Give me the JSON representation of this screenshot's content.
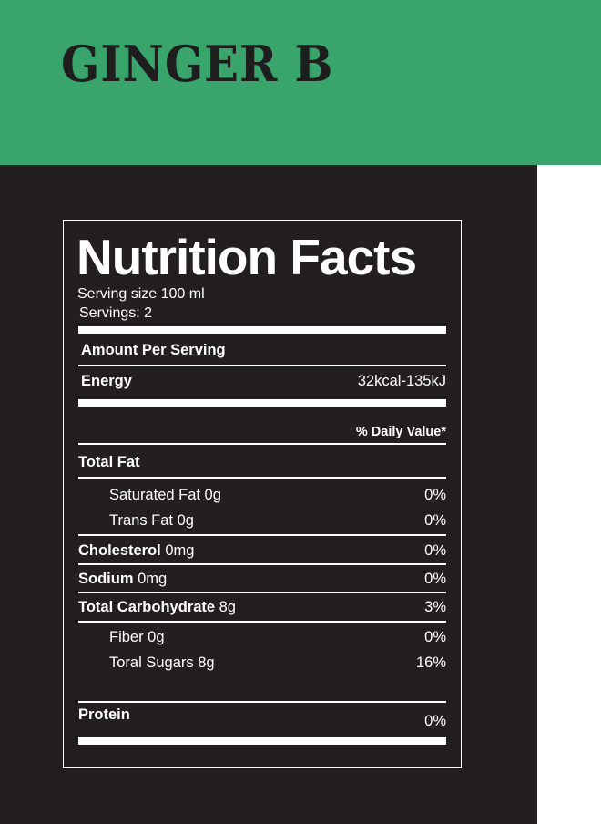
{
  "brand": {
    "title": "GINGER B"
  },
  "label": {
    "title": "Nutrition Facts",
    "serving_size": "Serving size 100 ml",
    "servings": "Servings: 2",
    "amount_per_serving": "Amount Per Serving",
    "energy": {
      "label": "Energy",
      "value": "32kcal-135kJ"
    },
    "daily_value_header": "% Daily Value*",
    "total_fat": {
      "label": "Total Fat"
    },
    "saturated_fat": {
      "label": "Saturated Fat 0g",
      "dv": "0%"
    },
    "trans_fat": {
      "label": "Trans Fat 0g",
      "dv": "0%"
    },
    "cholesterol": {
      "label": "Cholesterol",
      "amount": " 0mg",
      "dv": "0%"
    },
    "sodium": {
      "label": "Sodium",
      "amount": " 0mg",
      "dv": "0%"
    },
    "total_carbohydrate": {
      "label": "Total Carbohydrate",
      "amount": " 8g",
      "dv": "3%"
    },
    "fiber": {
      "label": "Fiber 0g",
      "dv": "0%"
    },
    "total_sugars": {
      "label": "Toral Sugars 8g",
      "dv": "16%"
    },
    "protein": {
      "label": "Protein",
      "dv": "0%"
    }
  },
  "colors": {
    "banner": "#39a46b",
    "panel": "#231f20",
    "text": "#ffffff",
    "brand_text": "#1e1e1e"
  }
}
